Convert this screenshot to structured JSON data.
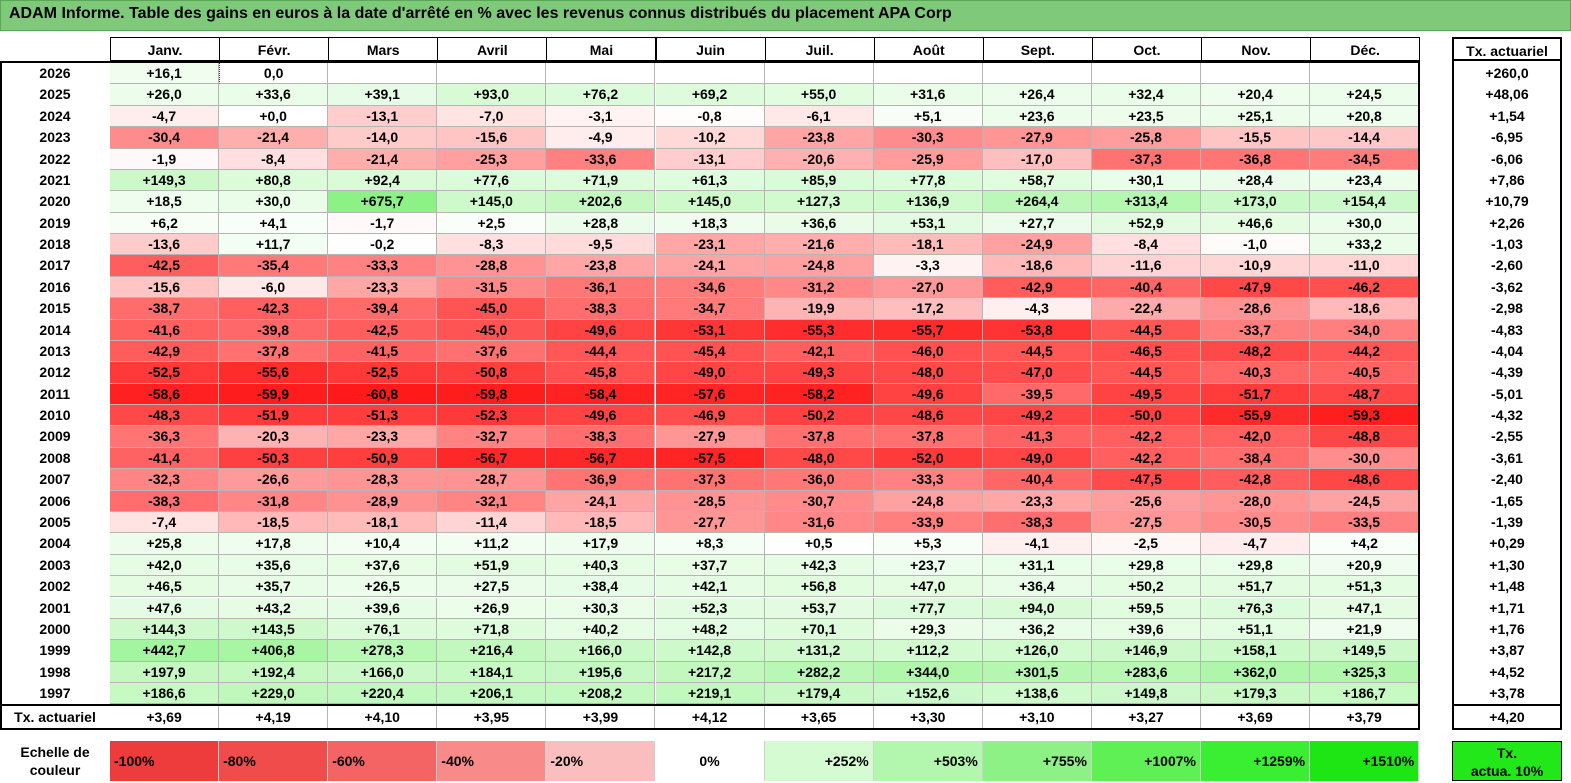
{
  "title": "ADAM Informe. Table des gains en euros à la date d'arrêté en % avec les revenus connus distribués du placement APA Corp",
  "chart_data": {
    "type": "heatmap",
    "title": "ADAM Informe. Table des gains en euros à la date d'arrêté en % avec les revenus connus distribués du placement APA Corp",
    "columns": [
      "Janv.",
      "Févr.",
      "Mars",
      "Avril",
      "Mai",
      "Juin",
      "Juil.",
      "Août",
      "Sept.",
      "Oct.",
      "Nov.",
      "Déc."
    ],
    "annual_header": "Tx. actuariel",
    "rows": [
      {
        "year": "2026",
        "values": [
          "+16,1",
          "0,0",
          "",
          "",
          "",
          "",
          "",
          "",
          "",
          "",
          "",
          ""
        ],
        "annual": "+260,0"
      },
      {
        "year": "2025",
        "values": [
          "+26,0",
          "+33,6",
          "+39,1",
          "+93,0",
          "+76,2",
          "+69,2",
          "+55,0",
          "+31,6",
          "+26,4",
          "+32,4",
          "+20,4",
          "+24,5"
        ],
        "annual": "+48,06"
      },
      {
        "year": "2024",
        "values": [
          "-4,7",
          "+0,0",
          "-13,1",
          "-7,0",
          "-3,1",
          "-0,8",
          "-6,1",
          "+5,1",
          "+23,6",
          "+23,5",
          "+25,1",
          "+20,8"
        ],
        "annual": "+1,54"
      },
      {
        "year": "2023",
        "values": [
          "-30,4",
          "-21,4",
          "-14,0",
          "-15,6",
          "-4,9",
          "-10,2",
          "-23,8",
          "-30,3",
          "-27,9",
          "-25,8",
          "-15,5",
          "-14,4"
        ],
        "annual": "-6,95"
      },
      {
        "year": "2022",
        "values": [
          "-1,9",
          "-8,4",
          "-21,4",
          "-25,3",
          "-33,6",
          "-13,1",
          "-20,6",
          "-25,9",
          "-17,0",
          "-37,3",
          "-36,8",
          "-34,5"
        ],
        "annual": "-6,06"
      },
      {
        "year": "2021",
        "values": [
          "+149,3",
          "+80,8",
          "+92,4",
          "+77,6",
          "+71,9",
          "+61,3",
          "+85,9",
          "+77,8",
          "+58,7",
          "+30,1",
          "+28,4",
          "+23,4"
        ],
        "annual": "+7,86"
      },
      {
        "year": "2020",
        "values": [
          "+18,5",
          "+30,0",
          "+675,7",
          "+145,0",
          "+202,6",
          "+145,0",
          "+127,3",
          "+136,9",
          "+264,4",
          "+313,4",
          "+173,0",
          "+154,4"
        ],
        "annual": "+10,79"
      },
      {
        "year": "2019",
        "values": [
          "+6,2",
          "+4,1",
          "-1,7",
          "+2,5",
          "+28,8",
          "+18,3",
          "+36,6",
          "+53,1",
          "+27,7",
          "+52,9",
          "+46,6",
          "+30,0"
        ],
        "annual": "+2,26"
      },
      {
        "year": "2018",
        "values": [
          "-13,6",
          "+11,7",
          "-0,2",
          "-8,3",
          "-9,5",
          "-23,1",
          "-21,6",
          "-18,1",
          "-24,9",
          "-8,4",
          "-1,0",
          "+33,2"
        ],
        "annual": "-1,03"
      },
      {
        "year": "2017",
        "values": [
          "-42,5",
          "-35,4",
          "-33,3",
          "-28,8",
          "-23,8",
          "-24,1",
          "-24,8",
          "-3,3",
          "-18,6",
          "-11,6",
          "-10,9",
          "-11,0"
        ],
        "annual": "-2,60"
      },
      {
        "year": "2016",
        "values": [
          "-15,6",
          "-6,0",
          "-23,3",
          "-31,5",
          "-36,1",
          "-34,6",
          "-31,2",
          "-27,0",
          "-42,9",
          "-40,4",
          "-47,9",
          "-46,2"
        ],
        "annual": "-3,62"
      },
      {
        "year": "2015",
        "values": [
          "-38,7",
          "-42,3",
          "-39,4",
          "-45,0",
          "-38,3",
          "-34,7",
          "-19,9",
          "-17,2",
          "-4,3",
          "-22,4",
          "-28,6",
          "-18,6"
        ],
        "annual": "-2,98"
      },
      {
        "year": "2014",
        "values": [
          "-41,6",
          "-39,8",
          "-42,5",
          "-45,0",
          "-49,6",
          "-53,1",
          "-55,3",
          "-55,7",
          "-53,8",
          "-44,5",
          "-33,7",
          "-34,0"
        ],
        "annual": "-4,83"
      },
      {
        "year": "2013",
        "values": [
          "-42,9",
          "-37,8",
          "-41,5",
          "-37,6",
          "-44,4",
          "-45,4",
          "-42,1",
          "-46,0",
          "-44,5",
          "-46,5",
          "-48,2",
          "-44,2"
        ],
        "annual": "-4,04"
      },
      {
        "year": "2012",
        "values": [
          "-52,5",
          "-55,6",
          "-52,5",
          "-50,8",
          "-45,8",
          "-49,0",
          "-49,3",
          "-48,0",
          "-47,0",
          "-44,5",
          "-40,3",
          "-40,5"
        ],
        "annual": "-4,39"
      },
      {
        "year": "2011",
        "values": [
          "-58,6",
          "-59,9",
          "-60,8",
          "-59,8",
          "-58,4",
          "-57,6",
          "-58,2",
          "-49,6",
          "-39,5",
          "-49,5",
          "-51,7",
          "-48,7"
        ],
        "annual": "-5,01"
      },
      {
        "year": "2010",
        "values": [
          "-48,3",
          "-51,9",
          "-51,3",
          "-52,3",
          "-49,6",
          "-46,9",
          "-50,2",
          "-48,6",
          "-49,2",
          "-50,0",
          "-55,9",
          "-59,3"
        ],
        "annual": "-4,32"
      },
      {
        "year": "2009",
        "values": [
          "-36,3",
          "-20,3",
          "-23,3",
          "-32,7",
          "-38,3",
          "-27,9",
          "-37,8",
          "-37,8",
          "-41,3",
          "-42,2",
          "-42,0",
          "-48,8"
        ],
        "annual": "-2,55"
      },
      {
        "year": "2008",
        "values": [
          "-41,4",
          "-50,3",
          "-50,9",
          "-56,7",
          "-56,7",
          "-57,5",
          "-48,0",
          "-52,0",
          "-49,0",
          "-42,2",
          "-38,4",
          "-30,0"
        ],
        "annual": "-3,61"
      },
      {
        "year": "2007",
        "values": [
          "-32,3",
          "-26,6",
          "-28,3",
          "-28,7",
          "-36,9",
          "-37,3",
          "-36,0",
          "-33,3",
          "-40,4",
          "-47,5",
          "-42,8",
          "-48,6"
        ],
        "annual": "-2,40"
      },
      {
        "year": "2006",
        "values": [
          "-38,3",
          "-31,8",
          "-28,9",
          "-32,1",
          "-24,1",
          "-28,5",
          "-30,7",
          "-24,8",
          "-23,3",
          "-25,6",
          "-28,0",
          "-24,5"
        ],
        "annual": "-1,65"
      },
      {
        "year": "2005",
        "values": [
          "-7,4",
          "-18,5",
          "-18,1",
          "-11,4",
          "-18,5",
          "-27,7",
          "-31,6",
          "-33,9",
          "-38,3",
          "-27,5",
          "-30,5",
          "-33,5"
        ],
        "annual": "-1,39"
      },
      {
        "year": "2004",
        "values": [
          "+25,8",
          "+17,8",
          "+10,4",
          "+11,2",
          "+17,9",
          "+8,3",
          "+0,5",
          "+5,3",
          "-4,1",
          "-2,5",
          "-4,7",
          "+4,2"
        ],
        "annual": "+0,29"
      },
      {
        "year": "2003",
        "values": [
          "+42,0",
          "+35,6",
          "+37,6",
          "+51,9",
          "+40,3",
          "+37,7",
          "+42,3",
          "+23,7",
          "+31,1",
          "+29,8",
          "+29,8",
          "+20,9"
        ],
        "annual": "+1,30"
      },
      {
        "year": "2002",
        "values": [
          "+46,5",
          "+35,7",
          "+26,5",
          "+27,5",
          "+38,4",
          "+42,1",
          "+56,8",
          "+47,0",
          "+36,4",
          "+50,2",
          "+51,7",
          "+51,3"
        ],
        "annual": "+1,48"
      },
      {
        "year": "2001",
        "values": [
          "+47,6",
          "+43,2",
          "+39,6",
          "+26,9",
          "+30,3",
          "+52,3",
          "+53,7",
          "+77,7",
          "+94,0",
          "+59,5",
          "+76,3",
          "+47,1"
        ],
        "annual": "+1,71"
      },
      {
        "year": "2000",
        "values": [
          "+144,3",
          "+143,5",
          "+76,1",
          "+71,8",
          "+40,2",
          "+48,2",
          "+70,1",
          "+29,3",
          "+36,2",
          "+39,6",
          "+51,1",
          "+21,9"
        ],
        "annual": "+1,76"
      },
      {
        "year": "1999",
        "values": [
          "+442,7",
          "+406,8",
          "+278,3",
          "+216,4",
          "+166,0",
          "+142,8",
          "+131,2",
          "+112,2",
          "+126,0",
          "+146,9",
          "+158,1",
          "+149,5"
        ],
        "annual": "+3,87"
      },
      {
        "year": "1998",
        "values": [
          "+197,9",
          "+192,4",
          "+166,0",
          "+184,1",
          "+195,6",
          "+217,2",
          "+282,2",
          "+344,0",
          "+301,5",
          "+283,6",
          "+362,0",
          "+325,3"
        ],
        "annual": "+4,52"
      },
      {
        "year": "1997",
        "values": [
          "+186,6",
          "+229,0",
          "+220,4",
          "+206,1",
          "+208,2",
          "+219,1",
          "+179,4",
          "+152,6",
          "+138,6",
          "+149,8",
          "+179,3",
          "+186,7"
        ],
        "annual": "+3,78"
      }
    ],
    "summary_row": {
      "label": "Tx. actuariel",
      "values": [
        "+3,69",
        "+4,19",
        "+4,10",
        "+3,95",
        "+3,99",
        "+4,12",
        "+3,65",
        "+3,30",
        "+3,10",
        "+3,27",
        "+3,69",
        "+3,79"
      ],
      "annual": "+4,20"
    },
    "scale": {
      "label_line1": "Echelle de",
      "label_line2": "couleur",
      "steps": [
        {
          "label": "-100%",
          "color": "#ee3b3b",
          "align": "left"
        },
        {
          "label": "-80%",
          "color": "#f04c4c",
          "align": "left"
        },
        {
          "label": "-60%",
          "color": "#f46464",
          "align": "left"
        },
        {
          "label": "-40%",
          "color": "#f88a8a",
          "align": "left"
        },
        {
          "label": "-20%",
          "color": "#fbbebe",
          "align": "left"
        },
        {
          "label": "0%",
          "color": "#ffffff",
          "align": "center"
        },
        {
          "label": "+252%",
          "color": "#d4fbd2",
          "align": "right"
        },
        {
          "label": "+503%",
          "color": "#b2f7ad",
          "align": "right"
        },
        {
          "label": "+755%",
          "color": "#8cf285",
          "align": "right"
        },
        {
          "label": "+1007%",
          "color": "#5ef055",
          "align": "right"
        },
        {
          "label": "+1259%",
          "color": "#3aee32",
          "align": "right"
        },
        {
          "label": "+1510%",
          "color": "#1ee615",
          "align": "right"
        }
      ],
      "annual_line1": "Tx.",
      "annual_line2": "actua. 10%",
      "annual_color": "#22e81a"
    }
  }
}
